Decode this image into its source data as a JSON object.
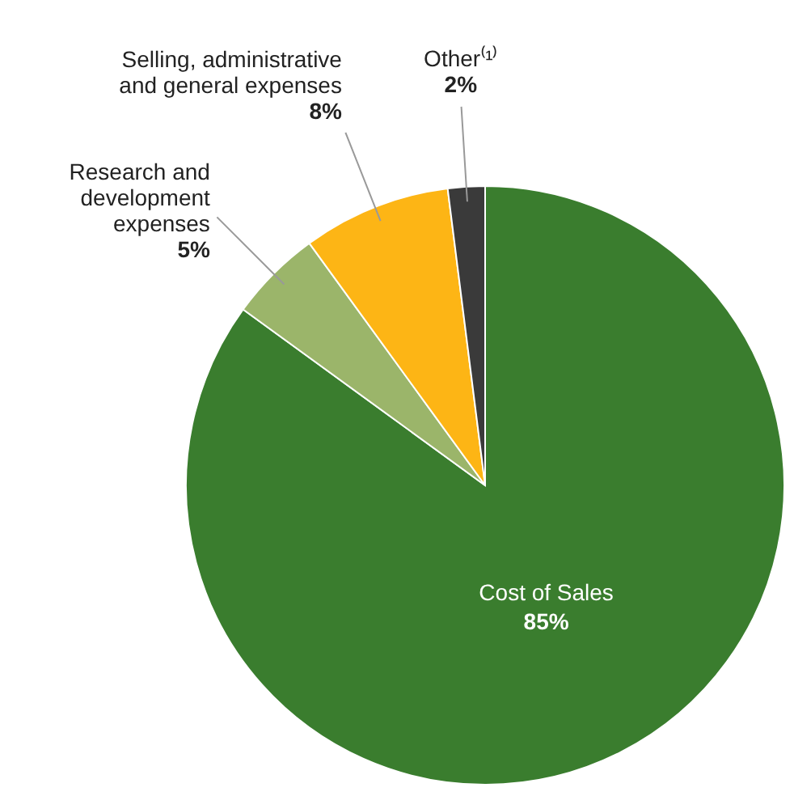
{
  "chart_data": {
    "type": "pie",
    "categories": [
      "Cost of Sales",
      "Research and development expenses",
      "Selling, administrative and general expenses",
      "Other⁽¹⁾"
    ],
    "values": [
      85,
      5,
      8,
      2
    ],
    "value_labels": [
      "85%",
      "5%",
      "8%",
      "2%"
    ],
    "colors": [
      "#3a7d2e",
      "#9bb56a",
      "#fdb515",
      "#3a3a3a"
    ]
  }
}
